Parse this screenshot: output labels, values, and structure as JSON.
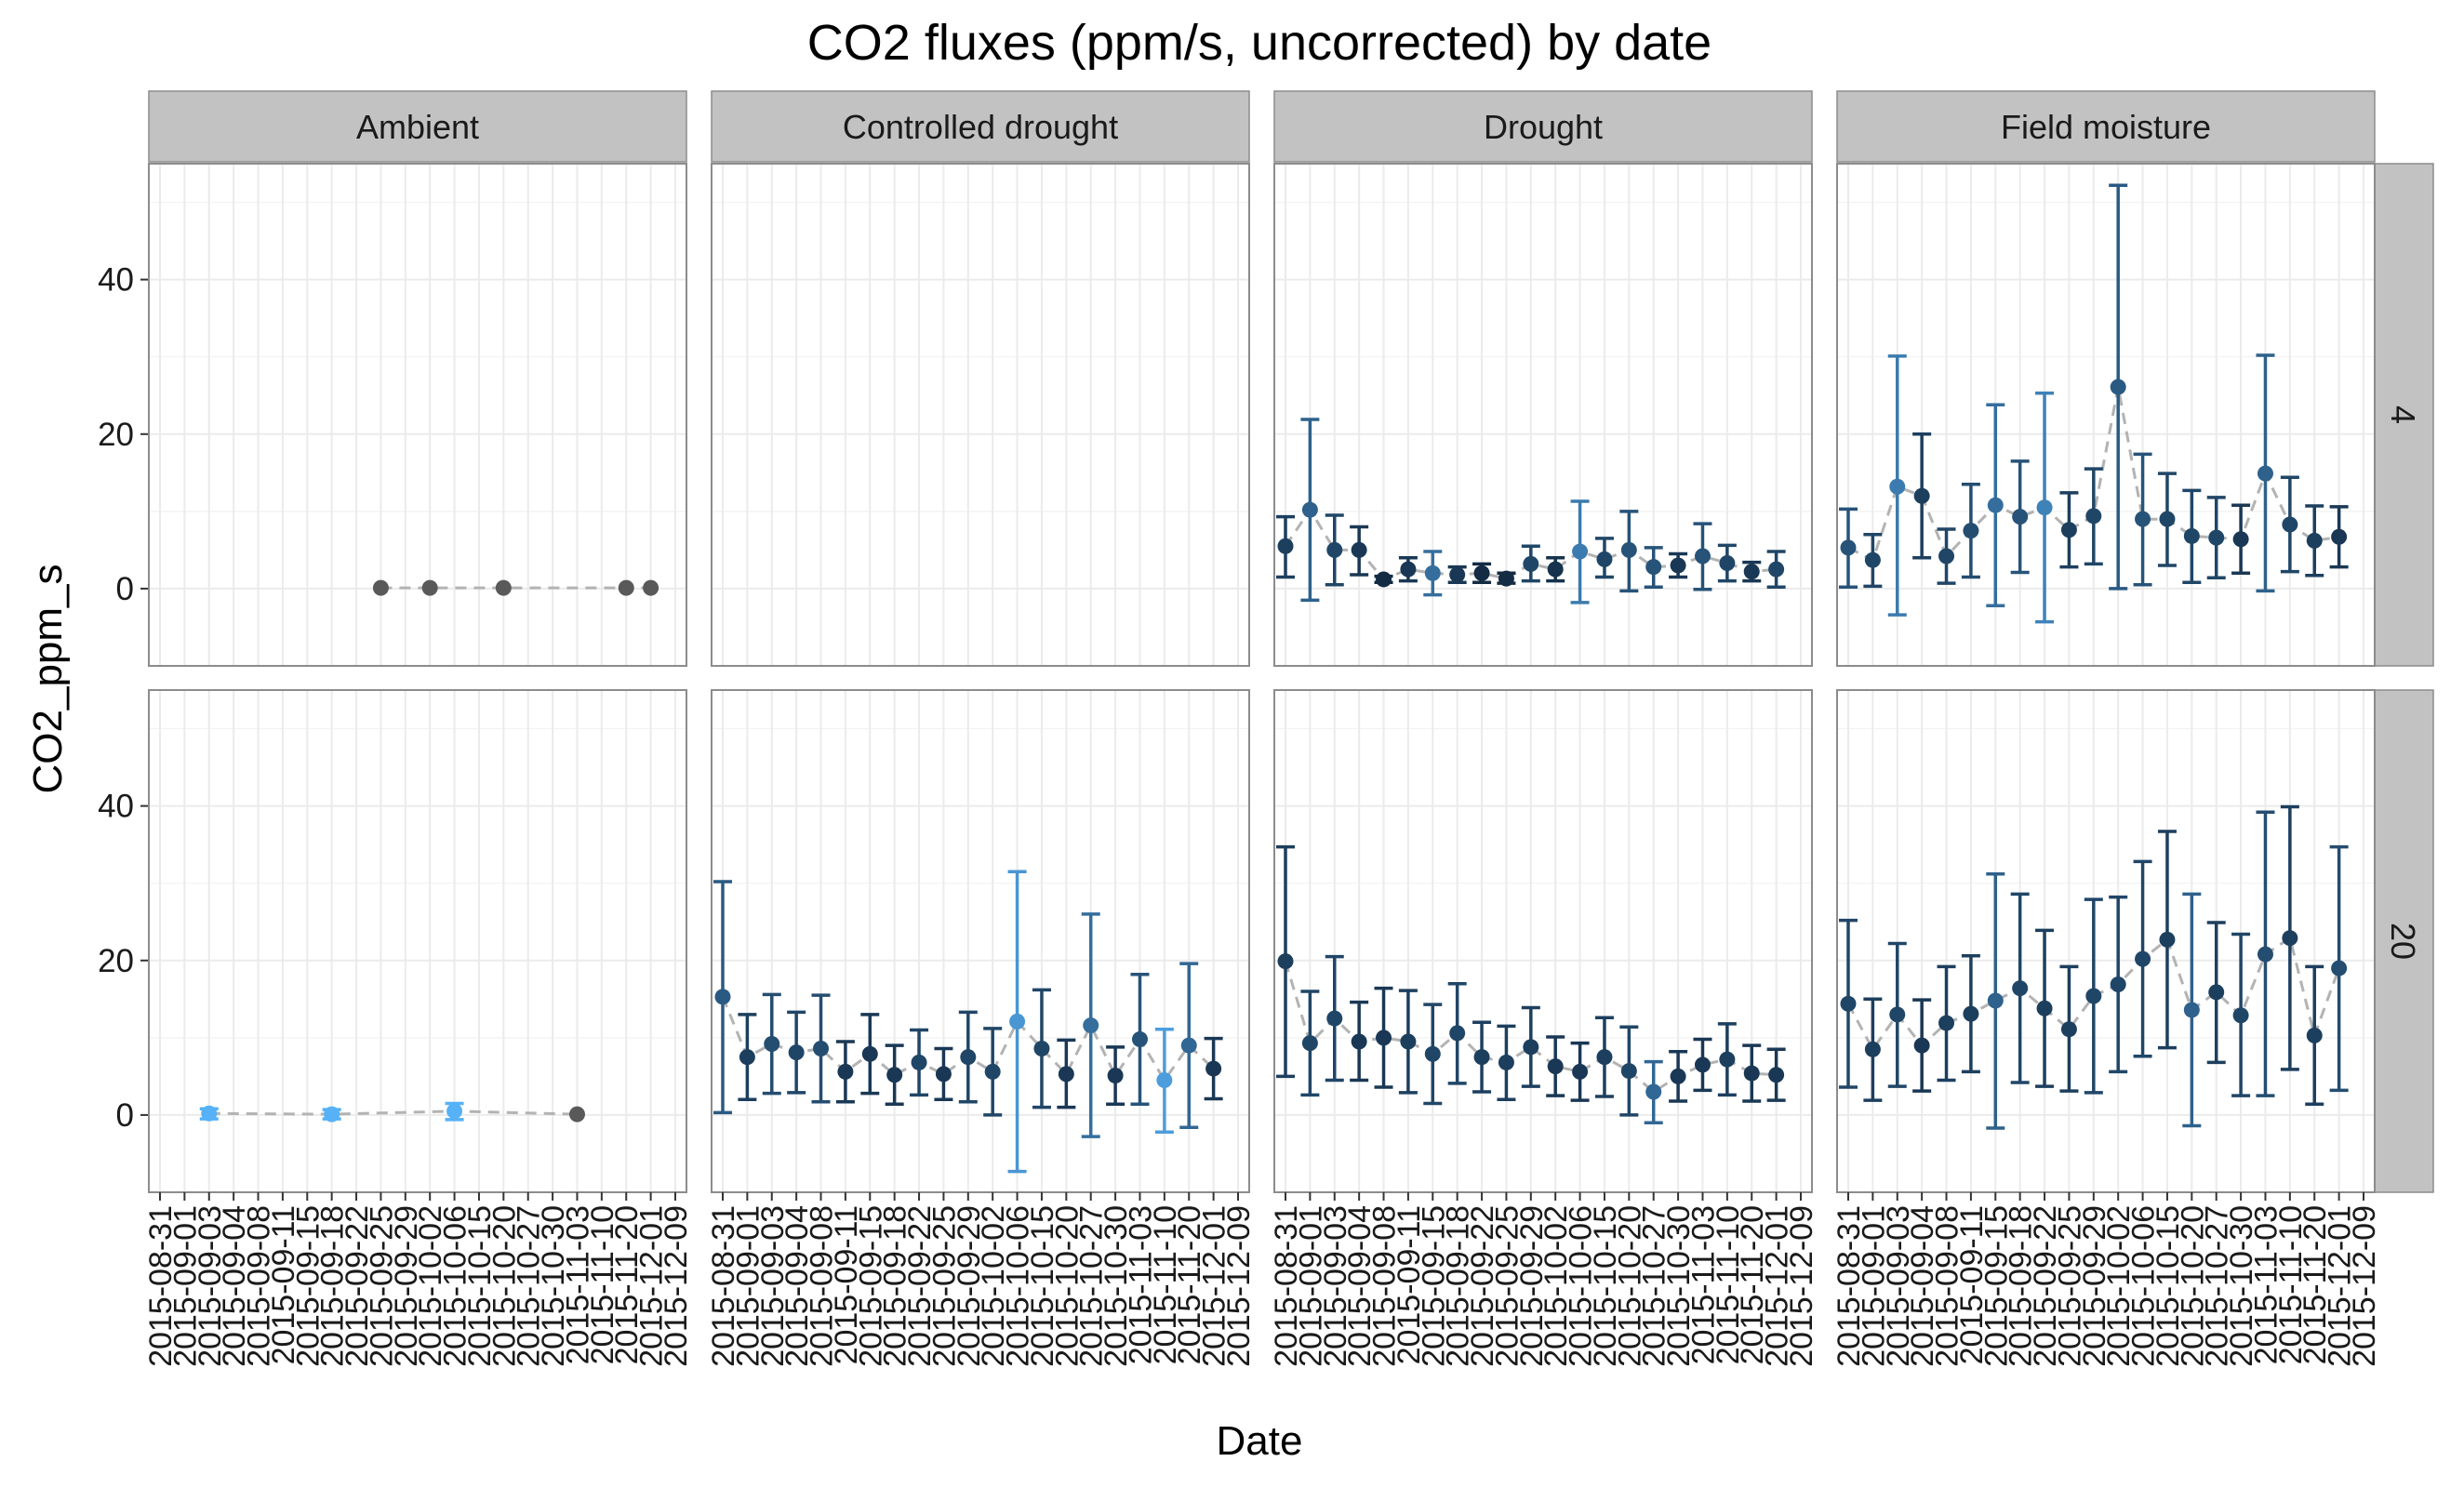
{
  "chart_data": {
    "type": "scatter",
    "title": "CO2 fluxes (ppm/s, uncorrected) by date",
    "xlabel": "Date",
    "ylabel": "CO2_ppm_s",
    "ylim": [
      -10,
      55
    ],
    "yticks": [
      0,
      20,
      40
    ],
    "grid": true,
    "facet_columns": [
      "Ambient",
      "Controlled drought",
      "Drought",
      "Field moisture"
    ],
    "facet_rows": [
      "4",
      "20"
    ],
    "dates": [
      "2015-08-31",
      "2015-09-01",
      "2015-09-03",
      "2015-09-04",
      "2015-09-08",
      "2015-09-11",
      "2015-09-15",
      "2015-09-18",
      "2015-09-22",
      "2015-09-25",
      "2015-09-29",
      "2015-10-02",
      "2015-10-06",
      "2015-10-15",
      "2015-10-20",
      "2015-10-27",
      "2015-10-30",
      "2015-11-03",
      "2015-11-10",
      "2015-11-20",
      "2015-12-01",
      "2015-12-09"
    ],
    "colors": {
      "line": "#b3b3b3",
      "low_variance": "#132b43",
      "high_variance": "#56b1f7",
      "ambient_point": "#595959",
      "strip_fill": "#c2c2c2",
      "grid": "#ebebeb",
      "panel_border": "#8c8c8c"
    },
    "panels": [
      {
        "col": "Ambient",
        "row": "4",
        "points": [
          {
            "i": 9,
            "y": 0.1,
            "lo": 0.1,
            "hi": 0.1,
            "c": 0
          },
          {
            "i": 11,
            "y": 0.1,
            "lo": 0.1,
            "hi": 0.1,
            "c": 0
          },
          {
            "i": 14,
            "y": 0.1,
            "lo": 0.1,
            "hi": 0.1,
            "c": 0
          },
          {
            "i": 19,
            "y": 0.1,
            "lo": 0.1,
            "hi": 0.1,
            "c": 0
          },
          {
            "i": 20,
            "y": 0.1,
            "lo": 0.1,
            "hi": 0.1,
            "c": 0
          }
        ]
      },
      {
        "col": "Controlled drought",
        "row": "4",
        "points": []
      },
      {
        "col": "Drought",
        "row": "4",
        "points": [
          {
            "i": 0,
            "y": 5.5,
            "lo": 1.5,
            "hi": 9.3,
            "c": 0.15
          },
          {
            "i": 1,
            "y": 10.2,
            "lo": -1.5,
            "hi": 21.9,
            "c": 0.4
          },
          {
            "i": 2,
            "y": 5.0,
            "lo": 0.5,
            "hi": 9.5,
            "c": 0.2
          },
          {
            "i": 3,
            "y": 5.0,
            "lo": 1.8,
            "hi": 8.0,
            "c": 0.1
          },
          {
            "i": 4,
            "y": 1.2,
            "lo": 0.8,
            "hi": 1.6,
            "c": 0
          },
          {
            "i": 5,
            "y": 2.5,
            "lo": 1.0,
            "hi": 4.0,
            "c": 0.1
          },
          {
            "i": 6,
            "y": 2.0,
            "lo": -0.8,
            "hi": 4.8,
            "c": 0.5
          },
          {
            "i": 7,
            "y": 1.8,
            "lo": 0.8,
            "hi": 2.8,
            "c": 0.1
          },
          {
            "i": 8,
            "y": 2.0,
            "lo": 0.8,
            "hi": 3.2,
            "c": 0
          },
          {
            "i": 9,
            "y": 1.3,
            "lo": 0.7,
            "hi": 2.0,
            "c": 0
          },
          {
            "i": 10,
            "y": 3.2,
            "lo": 1.0,
            "hi": 5.5,
            "c": 0.2
          },
          {
            "i": 11,
            "y": 2.5,
            "lo": 1.0,
            "hi": 4.0,
            "c": 0.05
          },
          {
            "i": 12,
            "y": 4.8,
            "lo": -1.8,
            "hi": 11.3,
            "c": 0.6
          },
          {
            "i": 13,
            "y": 3.8,
            "lo": 1.5,
            "hi": 6.5,
            "c": 0.2
          },
          {
            "i": 14,
            "y": 5.0,
            "lo": -0.3,
            "hi": 10.0,
            "c": 0.3
          },
          {
            "i": 15,
            "y": 2.8,
            "lo": 0.2,
            "hi": 5.3,
            "c": 0.3
          },
          {
            "i": 16,
            "y": 3.0,
            "lo": 1.5,
            "hi": 4.5,
            "c": 0.1
          },
          {
            "i": 17,
            "y": 4.2,
            "lo": -0.1,
            "hi": 8.4,
            "c": 0.3
          },
          {
            "i": 18,
            "y": 3.3,
            "lo": 1.0,
            "hi": 5.6,
            "c": 0.2
          },
          {
            "i": 19,
            "y": 2.2,
            "lo": 1.0,
            "hi": 3.4,
            "c": 0.1
          },
          {
            "i": 20,
            "y": 2.5,
            "lo": 0.2,
            "hi": 4.8,
            "c": 0.2
          }
        ]
      },
      {
        "col": "Field moisture",
        "row": "4",
        "points": [
          {
            "i": 0,
            "y": 5.3,
            "lo": 0.2,
            "hi": 10.3,
            "c": 0.3
          },
          {
            "i": 1,
            "y": 3.7,
            "lo": 0.3,
            "hi": 7.0,
            "c": 0.2
          },
          {
            "i": 2,
            "y": 13.2,
            "lo": -3.4,
            "hi": 30.1,
            "c": 0.6
          },
          {
            "i": 3,
            "y": 12.0,
            "lo": 4.0,
            "hi": 20.0,
            "c": 0.15
          },
          {
            "i": 4,
            "y": 4.2,
            "lo": 0.7,
            "hi": 7.7,
            "c": 0.2
          },
          {
            "i": 5,
            "y": 7.5,
            "lo": 1.5,
            "hi": 13.5,
            "c": 0.25
          },
          {
            "i": 6,
            "y": 10.8,
            "lo": -2.2,
            "hi": 23.8,
            "c": 0.5
          },
          {
            "i": 7,
            "y": 9.3,
            "lo": 2.1,
            "hi": 16.5,
            "c": 0.3
          },
          {
            "i": 8,
            "y": 10.5,
            "lo": -4.3,
            "hi": 25.3,
            "c": 0.65
          },
          {
            "i": 9,
            "y": 7.6,
            "lo": 2.8,
            "hi": 12.4,
            "c": 0.15
          },
          {
            "i": 10,
            "y": 9.4,
            "lo": 3.2,
            "hi": 15.5,
            "c": 0.2
          },
          {
            "i": 11,
            "y": 26.1,
            "lo": 0.0,
            "hi": 52.2,
            "c": 0.35
          },
          {
            "i": 12,
            "y": 9.0,
            "lo": 0.5,
            "hi": 17.4,
            "c": 0.3
          },
          {
            "i": 13,
            "y": 9.0,
            "lo": 3.0,
            "hi": 14.9,
            "c": 0.2
          },
          {
            "i": 14,
            "y": 6.8,
            "lo": 0.8,
            "hi": 12.7,
            "c": 0.2
          },
          {
            "i": 15,
            "y": 6.6,
            "lo": 1.4,
            "hi": 11.8,
            "c": 0.2
          },
          {
            "i": 16,
            "y": 6.4,
            "lo": 2.0,
            "hi": 10.8,
            "c": 0.1
          },
          {
            "i": 17,
            "y": 14.9,
            "lo": -0.3,
            "hi": 30.2,
            "c": 0.4
          },
          {
            "i": 18,
            "y": 8.3,
            "lo": 2.2,
            "hi": 14.4,
            "c": 0.2
          },
          {
            "i": 19,
            "y": 6.2,
            "lo": 1.7,
            "hi": 10.7,
            "c": 0.15
          },
          {
            "i": 20,
            "y": 6.7,
            "lo": 2.8,
            "hi": 10.6,
            "c": 0.1
          }
        ]
      },
      {
        "col": "Ambient",
        "row": "20",
        "points": [
          {
            "i": 2,
            "y": 0.2,
            "lo": -0.5,
            "hi": 0.8,
            "c": 1.0
          },
          {
            "i": 7,
            "y": 0.1,
            "lo": -0.5,
            "hi": 0.7,
            "c": 1.0
          },
          {
            "i": 12,
            "y": 0.5,
            "lo": -0.6,
            "hi": 1.5,
            "c": 1.0
          },
          {
            "i": 17,
            "y": 0.1,
            "lo": 0.1,
            "hi": 0.1,
            "c": 0
          }
        ]
      },
      {
        "col": "Controlled drought",
        "row": "20",
        "points": [
          {
            "i": 0,
            "y": 15.3,
            "lo": 0.3,
            "hi": 30.2,
            "c": 0.35
          },
          {
            "i": 1,
            "y": 7.5,
            "lo": 2.0,
            "hi": 13.0,
            "c": 0.15
          },
          {
            "i": 2,
            "y": 9.2,
            "lo": 2.8,
            "hi": 15.6,
            "c": 0.25
          },
          {
            "i": 3,
            "y": 8.1,
            "lo": 2.9,
            "hi": 13.3,
            "c": 0.2
          },
          {
            "i": 4,
            "y": 8.6,
            "lo": 1.7,
            "hi": 15.5,
            "c": 0.25
          },
          {
            "i": 5,
            "y": 5.6,
            "lo": 1.7,
            "hi": 9.5,
            "c": 0.1
          },
          {
            "i": 6,
            "y": 7.9,
            "lo": 2.8,
            "hi": 13.0,
            "c": 0.1
          },
          {
            "i": 7,
            "y": 5.2,
            "lo": 1.4,
            "hi": 9.0,
            "c": 0.1
          },
          {
            "i": 8,
            "y": 6.8,
            "lo": 2.6,
            "hi": 11.0,
            "c": 0.2
          },
          {
            "i": 9,
            "y": 5.3,
            "lo": 2.0,
            "hi": 8.6,
            "c": 0.1
          },
          {
            "i": 10,
            "y": 7.5,
            "lo": 1.7,
            "hi": 13.3,
            "c": 0.2
          },
          {
            "i": 11,
            "y": 5.6,
            "lo": 0.0,
            "hi": 11.2,
            "c": 0.2
          },
          {
            "i": 12,
            "y": 12.1,
            "lo": -7.3,
            "hi": 31.5,
            "c": 0.8
          },
          {
            "i": 13,
            "y": 8.6,
            "lo": 1.0,
            "hi": 16.2,
            "c": 0.2
          },
          {
            "i": 14,
            "y": 5.3,
            "lo": 1.0,
            "hi": 9.7,
            "c": 0.1
          },
          {
            "i": 15,
            "y": 11.6,
            "lo": -2.8,
            "hi": 26.0,
            "c": 0.5
          },
          {
            "i": 16,
            "y": 5.1,
            "lo": 1.4,
            "hi": 8.8,
            "c": 0.1
          },
          {
            "i": 17,
            "y": 9.8,
            "lo": 1.4,
            "hi": 18.2,
            "c": 0.3
          },
          {
            "i": 18,
            "y": 4.5,
            "lo": -2.2,
            "hi": 11.1,
            "c": 0.85
          },
          {
            "i": 19,
            "y": 9.0,
            "lo": -1.6,
            "hi": 19.6,
            "c": 0.45
          },
          {
            "i": 20,
            "y": 6.0,
            "lo": 2.1,
            "hi": 9.9,
            "c": 0.1
          }
        ]
      },
      {
        "col": "Drought",
        "row": "20",
        "points": [
          {
            "i": 0,
            "y": 19.9,
            "lo": 5.0,
            "hi": 34.7,
            "c": 0.15
          },
          {
            "i": 1,
            "y": 9.3,
            "lo": 2.6,
            "hi": 16.0,
            "c": 0.2
          },
          {
            "i": 2,
            "y": 12.5,
            "lo": 4.5,
            "hi": 20.5,
            "c": 0.2
          },
          {
            "i": 3,
            "y": 9.5,
            "lo": 4.5,
            "hi": 14.6,
            "c": 0.1
          },
          {
            "i": 4,
            "y": 10.0,
            "lo": 3.6,
            "hi": 16.4,
            "c": 0.1
          },
          {
            "i": 5,
            "y": 9.5,
            "lo": 2.9,
            "hi": 16.1,
            "c": 0.15
          },
          {
            "i": 6,
            "y": 7.9,
            "lo": 1.5,
            "hi": 14.3,
            "c": 0.2
          },
          {
            "i": 7,
            "y": 10.6,
            "lo": 4.1,
            "hi": 17.0,
            "c": 0.2
          },
          {
            "i": 8,
            "y": 7.5,
            "lo": 3.0,
            "hi": 12.0,
            "c": 0.15
          },
          {
            "i": 9,
            "y": 6.8,
            "lo": 2.0,
            "hi": 11.5,
            "c": 0.15
          },
          {
            "i": 10,
            "y": 8.8,
            "lo": 3.7,
            "hi": 13.9,
            "c": 0.15
          },
          {
            "i": 11,
            "y": 6.3,
            "lo": 2.5,
            "hi": 10.1,
            "c": 0.1
          },
          {
            "i": 12,
            "y": 5.6,
            "lo": 1.9,
            "hi": 9.3,
            "c": 0.1
          },
          {
            "i": 13,
            "y": 7.5,
            "lo": 2.4,
            "hi": 12.6,
            "c": 0.15
          },
          {
            "i": 14,
            "y": 5.7,
            "lo": 0.0,
            "hi": 11.4,
            "c": 0.2
          },
          {
            "i": 15,
            "y": 3.0,
            "lo": -1.0,
            "hi": 6.9,
            "c": 0.45
          },
          {
            "i": 16,
            "y": 5.0,
            "lo": 1.8,
            "hi": 8.2,
            "c": 0.1
          },
          {
            "i": 17,
            "y": 6.5,
            "lo": 3.2,
            "hi": 9.8,
            "c": 0.1
          },
          {
            "i": 18,
            "y": 7.2,
            "lo": 2.6,
            "hi": 11.8,
            "c": 0.15
          },
          {
            "i": 19,
            "y": 5.4,
            "lo": 1.8,
            "hi": 9.0,
            "c": 0.1
          },
          {
            "i": 20,
            "y": 5.2,
            "lo": 1.9,
            "hi": 8.5,
            "c": 0.1
          }
        ]
      },
      {
        "col": "Field moisture",
        "row": "20",
        "points": [
          {
            "i": 0,
            "y": 14.4,
            "lo": 3.6,
            "hi": 25.2,
            "c": 0.2
          },
          {
            "i": 1,
            "y": 8.5,
            "lo": 1.9,
            "hi": 15.0,
            "c": 0.15
          },
          {
            "i": 2,
            "y": 13.0,
            "lo": 3.7,
            "hi": 22.2,
            "c": 0.2
          },
          {
            "i": 3,
            "y": 9.0,
            "lo": 3.1,
            "hi": 14.9,
            "c": 0.1
          },
          {
            "i": 4,
            "y": 11.9,
            "lo": 4.5,
            "hi": 19.2,
            "c": 0.15
          },
          {
            "i": 5,
            "y": 13.1,
            "lo": 5.6,
            "hi": 20.6,
            "c": 0.15
          },
          {
            "i": 6,
            "y": 14.8,
            "lo": -1.7,
            "hi": 31.2,
            "c": 0.4
          },
          {
            "i": 7,
            "y": 16.4,
            "lo": 4.2,
            "hi": 28.6,
            "c": 0.2
          },
          {
            "i": 8,
            "y": 13.8,
            "lo": 3.7,
            "hi": 23.9,
            "c": 0.15
          },
          {
            "i": 9,
            "y": 11.1,
            "lo": 3.1,
            "hi": 19.2,
            "c": 0.15
          },
          {
            "i": 10,
            "y": 15.4,
            "lo": 2.9,
            "hi": 27.9,
            "c": 0.2
          },
          {
            "i": 11,
            "y": 16.9,
            "lo": 5.6,
            "hi": 28.2,
            "c": 0.2
          },
          {
            "i": 12,
            "y": 20.2,
            "lo": 7.6,
            "hi": 32.8,
            "c": 0.2
          },
          {
            "i": 13,
            "y": 22.7,
            "lo": 8.7,
            "hi": 36.7,
            "c": 0.15
          },
          {
            "i": 14,
            "y": 13.6,
            "lo": -1.4,
            "hi": 28.6,
            "c": 0.4
          },
          {
            "i": 15,
            "y": 15.9,
            "lo": 6.8,
            "hi": 24.9,
            "c": 0.15
          },
          {
            "i": 16,
            "y": 12.9,
            "lo": 2.5,
            "hi": 23.4,
            "c": 0.2
          },
          {
            "i": 17,
            "y": 20.8,
            "lo": 2.5,
            "hi": 39.2,
            "c": 0.25
          },
          {
            "i": 18,
            "y": 22.9,
            "lo": 5.9,
            "hi": 39.9,
            "c": 0.15
          },
          {
            "i": 19,
            "y": 10.3,
            "lo": 1.4,
            "hi": 19.2,
            "c": 0.15
          },
          {
            "i": 20,
            "y": 19.0,
            "lo": 3.2,
            "hi": 34.7,
            "c": 0.25
          }
        ]
      }
    ]
  }
}
